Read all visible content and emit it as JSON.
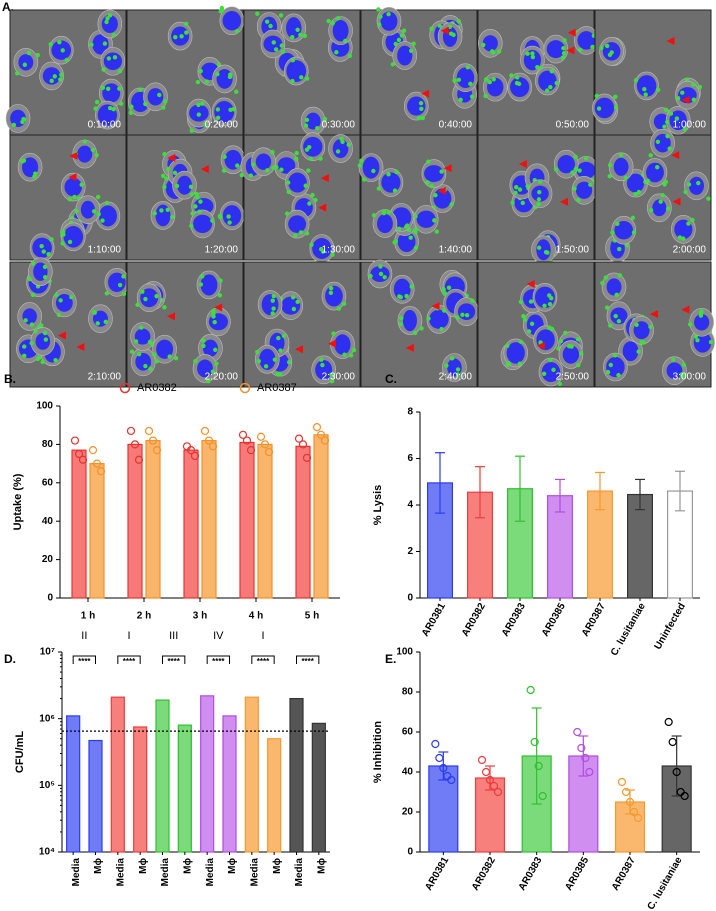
{
  "panel_a": {
    "label": "A.",
    "timestamps": [
      "0:10:00",
      "0:20:00",
      "0:30:00",
      "0:40:00",
      "0:50:00",
      "1:00:00",
      "1:10:00",
      "1:20:00",
      "1:30:00",
      "1:40:00",
      "1:50:00",
      "2:00:00",
      "2:10:00",
      "2:20:00",
      "2:30:00",
      "2:40:00",
      "2:50:00",
      "3:00:00"
    ]
  },
  "chart_data": [
    {
      "type": "bar",
      "panel_label": "B.",
      "ylabel": "Uptake (%)",
      "categories": [
        "1 h",
        "2 h",
        "3 h",
        "4 h",
        "5 h"
      ],
      "series": [
        {
          "name": "AR0382",
          "color": "#e8322e",
          "fill": "#f77a78",
          "values": [
            77,
            80,
            77,
            81,
            79
          ],
          "points": [
            [
              82,
              75,
              72
            ],
            [
              87,
              80,
              72
            ],
            [
              79,
              77,
              74
            ],
            [
              85,
              82,
              77
            ],
            [
              83,
              80,
              73
            ]
          ]
        },
        {
          "name": "AR0387",
          "color": "#f5902a",
          "fill": "#f9b56a",
          "values": [
            70,
            82,
            82,
            80,
            85
          ],
          "points": [
            [
              77,
              70,
              66
            ],
            [
              87,
              82,
              77
            ],
            [
              87,
              82,
              79
            ],
            [
              84,
              80,
              76
            ],
            [
              89,
              85,
              82
            ]
          ]
        }
      ],
      "ylim": [
        0,
        100
      ],
      "yticks": [
        0,
        20,
        40,
        60,
        80,
        100
      ],
      "legend": "top"
    },
    {
      "type": "bar",
      "panel_label": "C.",
      "ylabel": "% Lysis",
      "categories": [
        "AR0381",
        "AR0382",
        "AR0383",
        "AR0385",
        "AR0387",
        "C. lusitaniae",
        "Uninfected"
      ],
      "values": [
        4.95,
        4.55,
        4.7,
        4.4,
        4.6,
        4.45,
        4.6
      ],
      "errors": [
        1.3,
        1.1,
        1.4,
        0.7,
        0.8,
        0.65,
        0.85
      ],
      "colors": [
        "#2b3cf0",
        "#f03c3c",
        "#2ec02e",
        "#b04ee0",
        "#f59a2e",
        "#333333",
        "#999999"
      ],
      "fills": [
        "#6f7cf6",
        "#f77f7c",
        "#7bdb7b",
        "#cf8ef0",
        "#f9b86e",
        "#666666",
        "#ffffff"
      ],
      "ylim": [
        0,
        8
      ],
      "yticks": [
        0,
        2,
        4,
        6,
        8
      ]
    },
    {
      "type": "bar",
      "panel_label": "D.",
      "ylabel": "CFU/mL",
      "log": true,
      "categories": [
        "Media",
        "Mϕ",
        "Media",
        "Mϕ",
        "Media",
        "Mϕ",
        "Media",
        "Mϕ",
        "Media",
        "Mϕ",
        "Media",
        "Mϕ"
      ],
      "values": [
        1100000,
        470000,
        2100000,
        750000,
        1900000,
        800000,
        2200000,
        1100000,
        2100000,
        500000,
        2000000,
        850000
      ],
      "colors": [
        "#2b3cf0",
        "#2b3cf0",
        "#f03c3c",
        "#f03c3c",
        "#2ec02e",
        "#2ec02e",
        "#b04ee0",
        "#b04ee0",
        "#f59a2e",
        "#f59a2e",
        "#333333",
        "#333333"
      ],
      "fills": [
        "#6f7cf6",
        "#6f7cf6",
        "#f77f7c",
        "#f77f7c",
        "#7bdb7b",
        "#7bdb7b",
        "#cf8ef0",
        "#cf8ef0",
        "#f9b86e",
        "#f9b86e",
        "#555555",
        "#555555"
      ],
      "group_labels": [
        "II",
        "I",
        "III",
        "IV",
        "I"
      ],
      "significance": [
        "****",
        "****",
        "****",
        "****",
        "****",
        "****"
      ],
      "reference_line": 650000,
      "ylim": [
        10000,
        10000000
      ],
      "yticks": [
        {
          "value": 10000,
          "label": "10⁴"
        },
        {
          "value": 100000,
          "label": "10⁵"
        },
        {
          "value": 1000000,
          "label": "10⁶"
        },
        {
          "value": 10000000,
          "label": "10⁷"
        }
      ]
    },
    {
      "type": "bar",
      "panel_label": "E.",
      "ylabel": "% Inhibition",
      "categories": [
        "AR0381",
        "AR0382",
        "AR0383",
        "AR0385",
        "AR0387",
        "C. lusitaniae"
      ],
      "values": [
        43,
        37,
        48,
        48,
        25,
        43
      ],
      "errors": [
        7,
        6,
        24,
        10,
        6,
        15
      ],
      "points": [
        [
          54,
          47,
          42,
          38,
          36
        ],
        [
          46,
          40,
          36,
          33,
          30
        ],
        [
          81,
          55,
          43,
          28
        ],
        [
          60,
          52,
          47,
          40
        ],
        [
          35,
          30,
          25,
          20,
          17
        ],
        [
          65,
          55,
          40,
          30,
          28
        ]
      ],
      "colors": [
        "#2b3cf0",
        "#f03c3c",
        "#2ec02e",
        "#b04ee0",
        "#f59a2e",
        "#333333"
      ],
      "fills": [
        "#6f7cf6",
        "#f77f7c",
        "#7bdb7b",
        "#cf8ef0",
        "#f9b86e",
        "#666666"
      ],
      "ylim": [
        0,
        100
      ],
      "yticks": [
        0,
        20,
        40,
        60,
        80,
        100
      ]
    }
  ]
}
